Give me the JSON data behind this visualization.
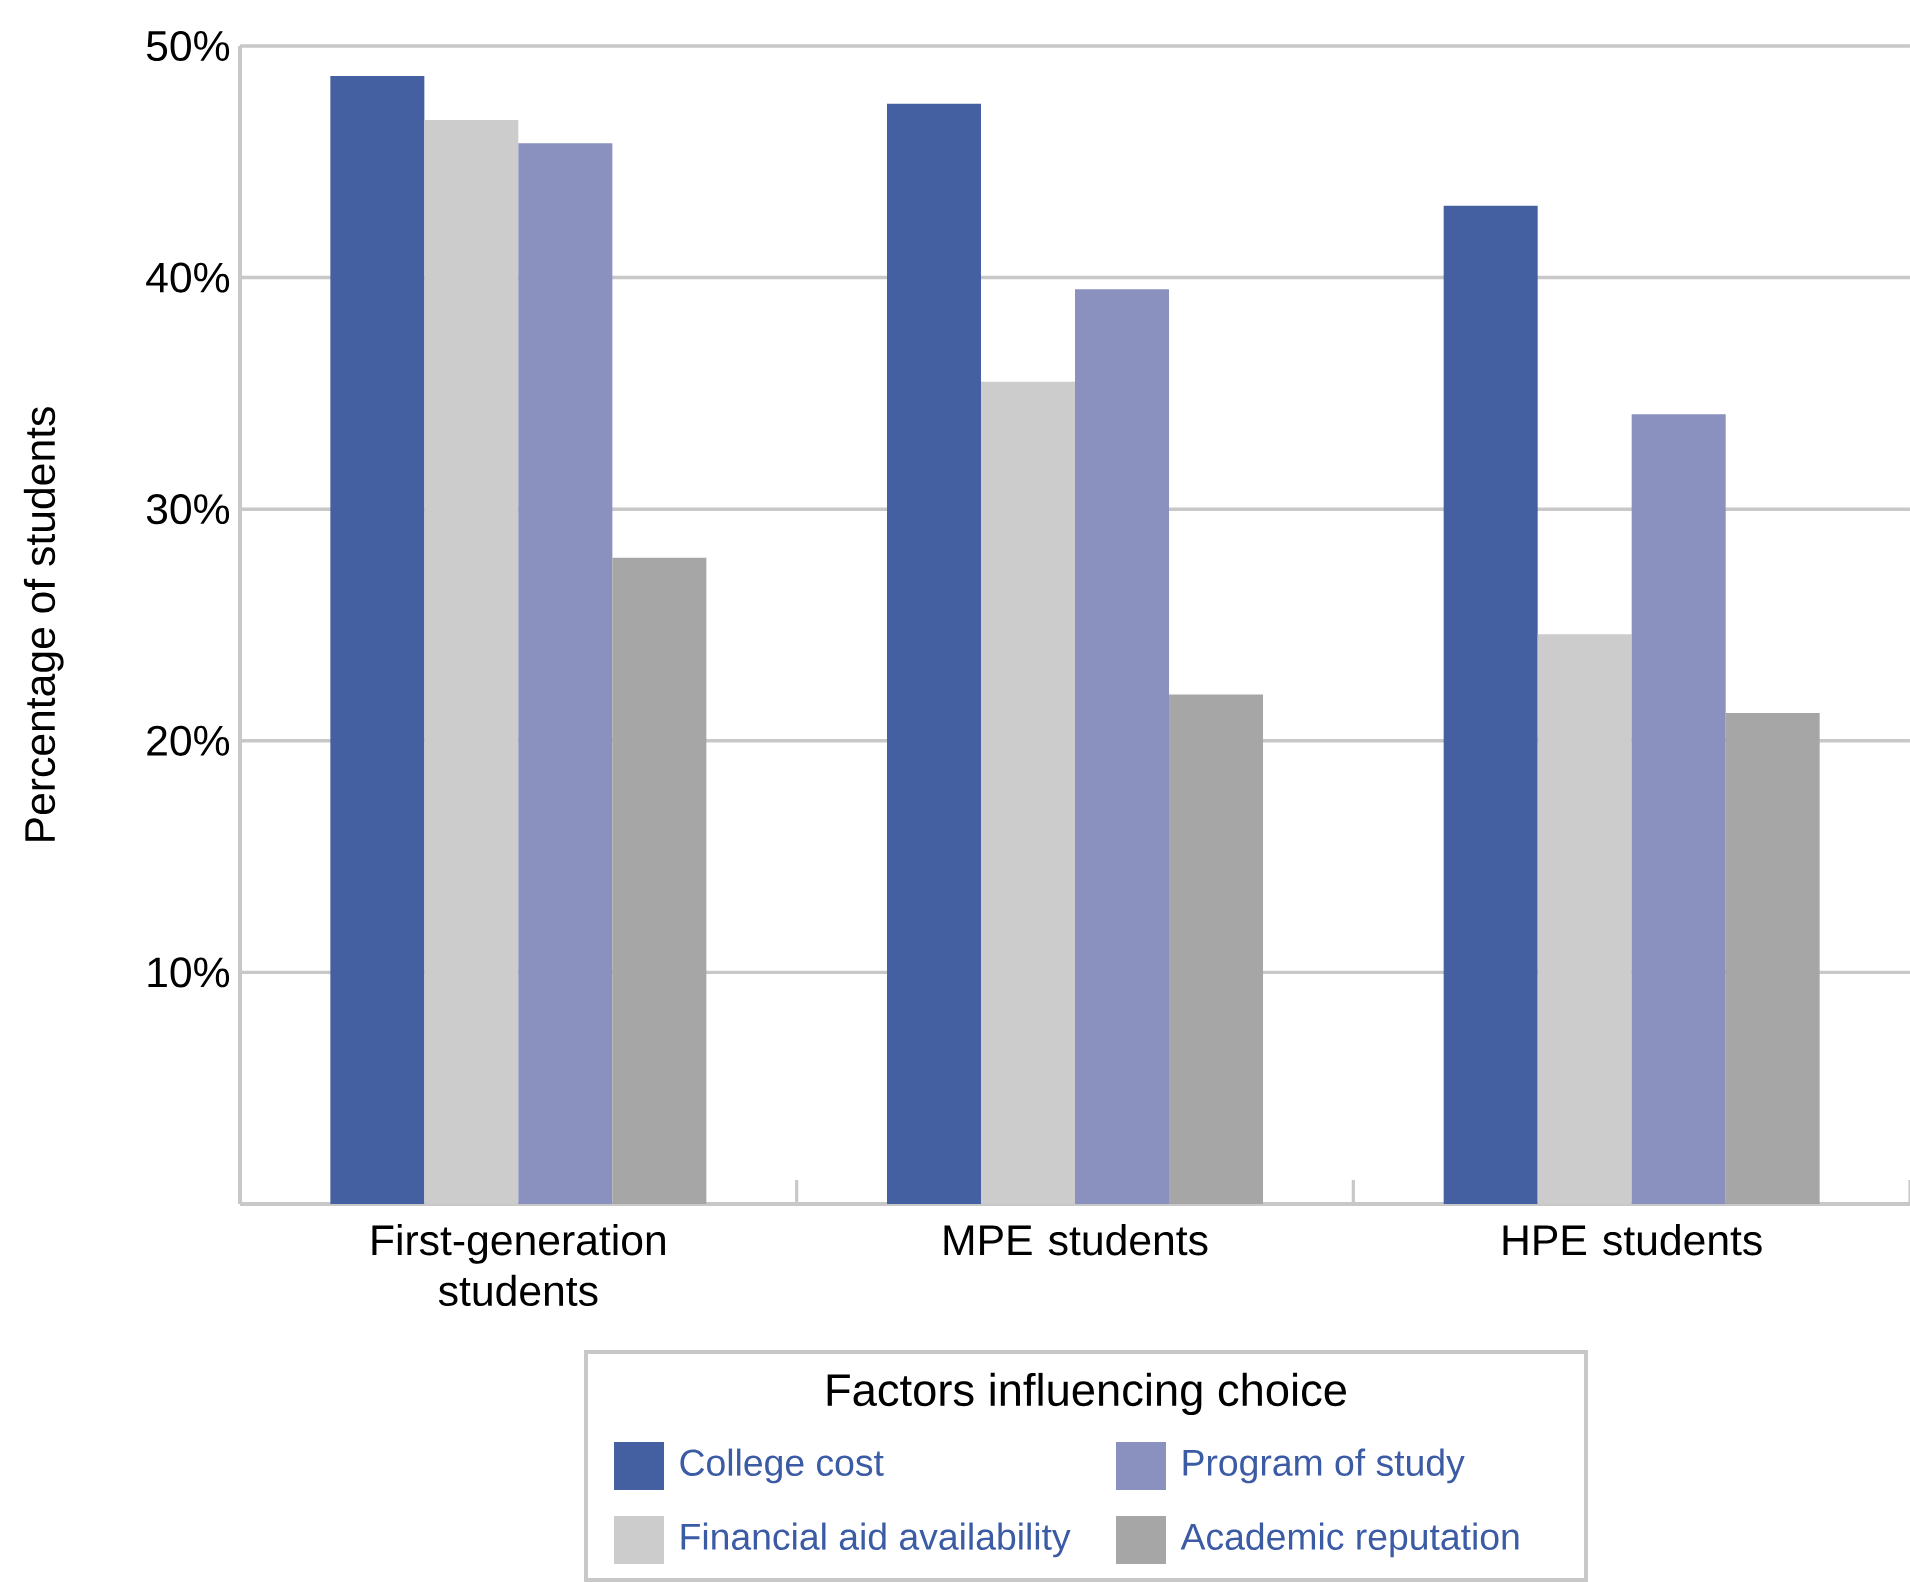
{
  "chart_data": {
    "type": "bar",
    "ylabel": "Percentage of students",
    "legend_title": "Factors influencing choice",
    "categories": [
      "First-generation students",
      "MPE students",
      "HPE students"
    ],
    "series": [
      {
        "name": "College cost",
        "color": "#4460a0",
        "values": [
          48.7,
          47.5,
          43.1
        ]
      },
      {
        "name": "Financial aid availability",
        "color": "#cccccc",
        "values": [
          46.8,
          35.5,
          24.6
        ]
      },
      {
        "name": "Program of study",
        "color": "#8a91bf",
        "values": [
          45.8,
          39.5,
          34.1
        ]
      },
      {
        "name": "Academic reputation",
        "color": "#a6a6a6",
        "values": [
          27.9,
          22.0,
          21.2
        ]
      }
    ],
    "ylim": [
      0,
      50
    ],
    "yticks": [
      {
        "value": 10,
        "label": "10%"
      },
      {
        "value": 20,
        "label": "20%"
      },
      {
        "value": 30,
        "label": "30%"
      },
      {
        "value": 40,
        "label": "40%"
      },
      {
        "value": 50,
        "label": "50%"
      }
    ],
    "grid": "y",
    "legend": "bottom"
  }
}
